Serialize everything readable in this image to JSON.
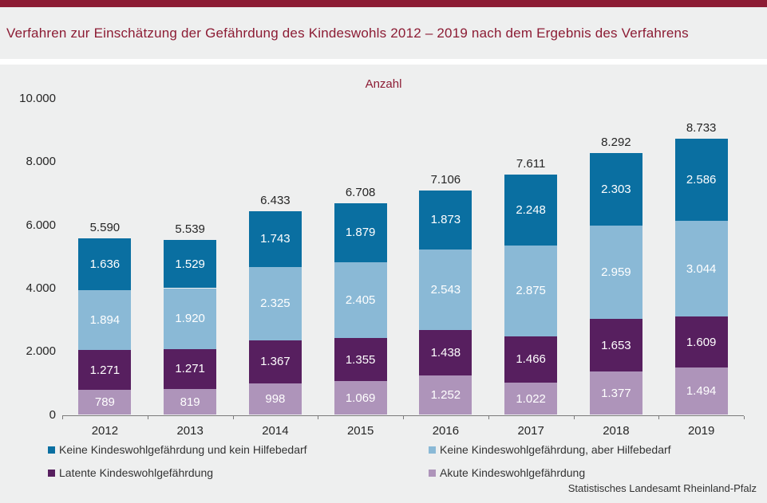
{
  "colors": {
    "brand_red": "#8c1c34",
    "section_background": "#eeefef",
    "axis_gray": "#7a7a7a",
    "label_dark": "#262626",
    "series_dark_blue": "#0a6fa1",
    "series_light_blue": "#8ab9d6",
    "series_dark_purple": "#571f5f",
    "series_light_mauve": "#ae94ba"
  },
  "header": {
    "title": "Verfahren zur Einschätzung der Gefährdung des Kindeswohls 2012 – 2019 nach dem Ergebnis des Verfahrens"
  },
  "chart_data": {
    "type": "bar",
    "stacked": true,
    "title": "Anzahl",
    "categories": [
      "2012",
      "2013",
      "2014",
      "2015",
      "2016",
      "2017",
      "2018",
      "2019"
    ],
    "series": [
      {
        "name": "Akute Kindeswohlgefährdung",
        "color": "#ae94ba",
        "values": [
          789,
          819,
          998,
          1069,
          1252,
          1022,
          1377,
          1494
        ],
        "labels": [
          "789",
          "819",
          "998",
          "1.069",
          "1.252",
          "1.022",
          "1.377",
          "1.494"
        ]
      },
      {
        "name": "Latente Kindeswohlgefährdung",
        "color": "#571f5f",
        "values": [
          1271,
          1271,
          1367,
          1355,
          1438,
          1466,
          1653,
          1609
        ],
        "labels": [
          "1.271",
          "1.271",
          "1.367",
          "1.355",
          "1.438",
          "1.466",
          "1.653",
          "1.609"
        ]
      },
      {
        "name": "Keine Kindeswohlgefährdung, aber Hilfebedarf",
        "color": "#8ab9d6",
        "values": [
          1894,
          1920,
          2325,
          2405,
          2543,
          2875,
          2959,
          3044
        ],
        "labels": [
          "1.894",
          "1.920",
          "2.325",
          "2.405",
          "2.543",
          "2.875",
          "2.959",
          "3.044"
        ]
      },
      {
        "name": "Keine Kindeswohlgefährdung und kein Hilfebedarf",
        "color": "#0a6fa1",
        "values": [
          1636,
          1529,
          1743,
          1879,
          1873,
          2248,
          2303,
          2586
        ],
        "labels": [
          "1.636",
          "1.529",
          "1.743",
          "1.879",
          "1.873",
          "2.248",
          "2.303",
          "2.586"
        ]
      }
    ],
    "totals": [
      5590,
      5539,
      6433,
      6708,
      7106,
      7611,
      8292,
      8733
    ],
    "total_labels": [
      "5.590",
      "5.539",
      "6.433",
      "6.708",
      "7.106",
      "7.611",
      "8.292",
      "8.733"
    ],
    "ylim": [
      0,
      10000
    ],
    "yticks": [
      {
        "value": 0,
        "label": "0"
      },
      {
        "value": 2000,
        "label": "2.000"
      },
      {
        "value": 4000,
        "label": "4.000"
      },
      {
        "value": 6000,
        "label": "6.000"
      },
      {
        "value": 8000,
        "label": "8.000"
      },
      {
        "value": 10000,
        "label": "10.000"
      }
    ],
    "grid": false,
    "legend_position": "bottom"
  },
  "legend": {
    "items": [
      {
        "label": "Keine Kindeswohlgefährdung und kein Hilfebedarf",
        "color": "#0a6fa1"
      },
      {
        "label": "Keine Kindeswohlgefährdung, aber Hilfebedarf",
        "color": "#8ab9d6"
      },
      {
        "label": "Latente Kindeswohlgefährdung",
        "color": "#571f5f"
      },
      {
        "label": "Akute Kindeswohlgefährdung",
        "color": "#ae94ba"
      }
    ]
  },
  "footer": {
    "source": "Statistisches Landesamt Rheinland-Pfalz"
  }
}
